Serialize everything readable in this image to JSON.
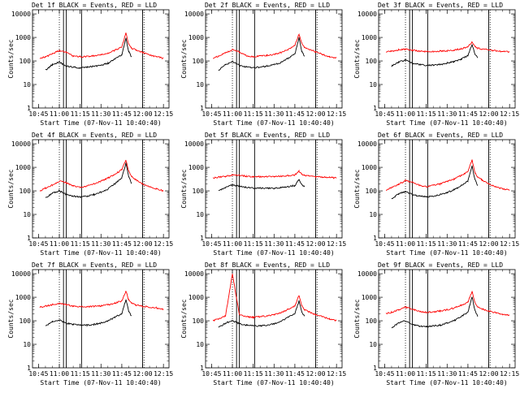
{
  "colors": {
    "events": "#000000",
    "lld": "#ff0000",
    "axes": "#000000",
    "background": "#ffffff"
  },
  "common": {
    "ylabel": "Counts/sec",
    "xlabel": "Start Time (07-Nov-11 10:40:40)",
    "xticks": [
      "10:45",
      "11:00",
      "11:15",
      "11:30",
      "11:45",
      "12:00",
      "12:15"
    ],
    "yticks": [
      "1",
      "10",
      "100",
      "1000",
      "10000"
    ]
  },
  "chart_data": [
    {
      "type": "line",
      "title": "Det 1f BLACK = Events, RED = LLD",
      "xlabel": "Start Time (07-Nov-11 10:40:40)",
      "ylabel": "Counts/sec",
      "xlim": [
        "10:40:40",
        "12:19:00"
      ],
      "ylim": [
        1,
        15000
      ],
      "yscale": "log",
      "x": [
        "10:46",
        "10:50",
        "10:55",
        "11:00",
        "11:05",
        "11:10",
        "11:15",
        "11:20",
        "11:25",
        "11:30",
        "11:35",
        "11:40",
        "11:45",
        "11:48",
        "11:50",
        "11:52",
        "11:55",
        "12:00",
        "12:05",
        "12:10",
        "12:15"
      ],
      "series": [
        {
          "name": "Events",
          "color": "#000000",
          "values": [
            null,
            40,
            70,
            90,
            60,
            55,
            50,
            55,
            60,
            65,
            80,
            120,
            180,
            900,
            250,
            150,
            null,
            null,
            null,
            null,
            null
          ]
        },
        {
          "name": "LLD",
          "color": "#ff0000",
          "values": [
            130,
            150,
            200,
            280,
            230,
            160,
            150,
            155,
            165,
            180,
            210,
            280,
            400,
            1500,
            500,
            350,
            300,
            230,
            180,
            150,
            130
          ]
        }
      ],
      "vlines_solid": [
        "11:03",
        "11:05",
        "11:16",
        "12:00"
      ],
      "vlines_dotted": [
        "11:00",
        "12:01"
      ]
    },
    {
      "type": "line",
      "title": "Det 2f BLACK = Events, RED = LLD",
      "xlabel": "Start Time (07-Nov-11 10:40:40)",
      "ylabel": "Counts/sec",
      "xlim": [
        "10:40:40",
        "12:19:00"
      ],
      "ylim": [
        1,
        15000
      ],
      "yscale": "log",
      "x": [
        "10:46",
        "10:50",
        "10:55",
        "11:00",
        "11:05",
        "11:10",
        "11:15",
        "11:20",
        "11:25",
        "11:30",
        "11:35",
        "11:40",
        "11:45",
        "11:48",
        "11:50",
        "11:52",
        "11:55",
        "12:00",
        "12:05",
        "12:10",
        "12:15"
      ],
      "series": [
        {
          "name": "Events",
          "color": "#000000",
          "values": [
            null,
            40,
            70,
            95,
            65,
            55,
            50,
            55,
            60,
            70,
            85,
            130,
            200,
            1000,
            250,
            150,
            null,
            null,
            null,
            null,
            null
          ]
        },
        {
          "name": "LLD",
          "color": "#ff0000",
          "values": [
            130,
            160,
            220,
            300,
            240,
            170,
            150,
            160,
            170,
            190,
            230,
            300,
            450,
            1400,
            550,
            380,
            320,
            240,
            190,
            150,
            130
          ]
        }
      ],
      "vlines_solid": [
        "11:03",
        "11:05",
        "11:16",
        "12:00"
      ],
      "vlines_dotted": [
        "11:00",
        "12:01"
      ]
    },
    {
      "type": "line",
      "title": "Det 3f BLACK = Events, RED = LLD",
      "xlabel": "Start Time (07-Nov-11 10:40:40)",
      "ylabel": "Counts/sec",
      "xlim": [
        "10:40:40",
        "12:19:00"
      ],
      "ylim": [
        1,
        15000
      ],
      "yscale": "log",
      "x": [
        "10:46",
        "10:50",
        "10:55",
        "11:00",
        "11:05",
        "11:10",
        "11:15",
        "11:20",
        "11:25",
        "11:30",
        "11:35",
        "11:40",
        "11:45",
        "11:48",
        "11:50",
        "11:52",
        "11:55",
        "12:00",
        "12:05",
        "12:10",
        "12:15"
      ],
      "series": [
        {
          "name": "Events",
          "color": "#000000",
          "values": [
            null,
            60,
            90,
            110,
            80,
            70,
            65,
            65,
            70,
            80,
            95,
            120,
            170,
            500,
            200,
            140,
            null,
            null,
            null,
            null,
            null
          ]
        },
        {
          "name": "LLD",
          "color": "#ff0000",
          "values": [
            240,
            260,
            290,
            320,
            290,
            260,
            250,
            250,
            260,
            270,
            290,
            330,
            400,
            650,
            420,
            350,
            320,
            290,
            270,
            250,
            240
          ]
        }
      ],
      "vlines_solid": [
        "11:03",
        "11:05",
        "11:16",
        "12:00"
      ],
      "vlines_dotted": [
        "11:00",
        "12:01"
      ]
    },
    {
      "type": "line",
      "title": "Det 4f BLACK = Events, RED = LLD",
      "xlabel": "Start Time (07-Nov-11 10:40:40)",
      "ylabel": "Counts/sec",
      "xlim": [
        "10:40:40",
        "12:19:00"
      ],
      "ylim": [
        1,
        15000
      ],
      "yscale": "log",
      "x": [
        "10:46",
        "10:50",
        "10:55",
        "11:00",
        "11:05",
        "11:10",
        "11:15",
        "11:20",
        "11:25",
        "11:30",
        "11:35",
        "11:40",
        "11:45",
        "11:48",
        "11:50",
        "11:52",
        "11:55",
        "12:00",
        "12:05",
        "12:10",
        "12:15"
      ],
      "series": [
        {
          "name": "Events",
          "color": "#000000",
          "values": [
            null,
            50,
            80,
            100,
            70,
            60,
            55,
            60,
            70,
            90,
            120,
            200,
            350,
            1500,
            400,
            200,
            null,
            null,
            null,
            null,
            null
          ]
        },
        {
          "name": "LLD",
          "color": "#ff0000",
          "values": [
            100,
            130,
            180,
            260,
            220,
            160,
            140,
            160,
            200,
            260,
            350,
            500,
            800,
            2000,
            700,
            400,
            300,
            200,
            150,
            120,
            100
          ]
        }
      ],
      "vlines_solid": [
        "11:03",
        "11:05",
        "11:16",
        "12:00"
      ],
      "vlines_dotted": [
        "11:00",
        "12:01"
      ]
    },
    {
      "type": "line",
      "title": "Det 5f BLACK = Events, RED = LLD",
      "xlabel": "Start Time (07-Nov-11 10:40:40)",
      "ylabel": "Counts/sec",
      "xlim": [
        "10:40:40",
        "12:19:00"
      ],
      "ylim": [
        1,
        15000
      ],
      "yscale": "log",
      "x": [
        "10:46",
        "10:50",
        "10:55",
        "11:00",
        "11:05",
        "11:10",
        "11:15",
        "11:20",
        "11:25",
        "11:30",
        "11:35",
        "11:40",
        "11:45",
        "11:48",
        "11:50",
        "11:52",
        "11:55",
        "12:00",
        "12:05",
        "12:10",
        "12:15"
      ],
      "series": [
        {
          "name": "Events",
          "color": "#000000",
          "values": [
            null,
            100,
            140,
            180,
            160,
            140,
            130,
            130,
            130,
            130,
            140,
            150,
            170,
            300,
            180,
            150,
            null,
            null,
            null,
            null,
            null
          ]
        },
        {
          "name": "LLD",
          "color": "#ff0000",
          "values": [
            350,
            380,
            420,
            480,
            460,
            420,
            400,
            400,
            400,
            410,
            420,
            440,
            470,
            700,
            500,
            450,
            420,
            400,
            390,
            370,
            350
          ]
        }
      ],
      "vlines_solid": [
        "11:03",
        "11:05",
        "11:16",
        "12:00"
      ],
      "vlines_dotted": [
        "11:00",
        "12:01"
      ]
    },
    {
      "type": "line",
      "title": "Det 6f BLACK = Events, RED = LLD",
      "xlabel": "Start Time (07-Nov-11 10:40:40)",
      "ylabel": "Counts/sec",
      "xlim": [
        "10:40:40",
        "12:19:00"
      ],
      "ylim": [
        1,
        15000
      ],
      "yscale": "log",
      "x": [
        "10:46",
        "10:50",
        "10:55",
        "11:00",
        "11:05",
        "11:10",
        "11:15",
        "11:20",
        "11:25",
        "11:30",
        "11:35",
        "11:40",
        "11:45",
        "11:48",
        "11:50",
        "11:52",
        "11:55",
        "12:00",
        "12:05",
        "12:10",
        "12:15"
      ],
      "series": [
        {
          "name": "Events",
          "color": "#000000",
          "values": [
            null,
            45,
            75,
            95,
            70,
            60,
            55,
            60,
            70,
            85,
            110,
            160,
            260,
            1200,
            300,
            170,
            null,
            null,
            null,
            null,
            null
          ]
        },
        {
          "name": "LLD",
          "color": "#ff0000",
          "values": [
            110,
            140,
            190,
            270,
            230,
            170,
            150,
            170,
            200,
            250,
            320,
            450,
            650,
            2100,
            600,
            380,
            290,
            200,
            150,
            120,
            110
          ]
        }
      ],
      "vlines_solid": [
        "11:03",
        "11:05",
        "11:16",
        "12:00"
      ],
      "vlines_dotted": [
        "11:00",
        "12:01"
      ]
    },
    {
      "type": "line",
      "title": "Det 7f BLACK = Events, RED = LLD",
      "xlabel": "Start Time (07-Nov-11 10:40:40)",
      "ylabel": "Counts/sec",
      "xlim": [
        "10:40:40",
        "12:19:00"
      ],
      "ylim": [
        1,
        15000
      ],
      "yscale": "log",
      "x": [
        "10:46",
        "10:50",
        "10:55",
        "11:00",
        "11:05",
        "11:10",
        "11:15",
        "11:20",
        "11:25",
        "11:30",
        "11:35",
        "11:40",
        "11:45",
        "11:48",
        "11:50",
        "11:52",
        "11:55",
        "12:00",
        "12:05",
        "12:10",
        "12:15"
      ],
      "series": [
        {
          "name": "Events",
          "color": "#000000",
          "values": [
            null,
            60,
            90,
            110,
            80,
            70,
            65,
            65,
            70,
            80,
            100,
            140,
            200,
            800,
            250,
            160,
            null,
            null,
            null,
            null,
            null
          ]
        },
        {
          "name": "LLD",
          "color": "#ff0000",
          "values": [
            380,
            420,
            480,
            550,
            480,
            420,
            400,
            400,
            410,
            430,
            480,
            560,
            700,
            1800,
            750,
            550,
            480,
            420,
            380,
            350,
            300
          ]
        }
      ],
      "vlines_solid": [
        "11:03",
        "11:05",
        "11:16",
        "12:00"
      ],
      "vlines_dotted": [
        "11:00",
        "12:01"
      ]
    },
    {
      "type": "line",
      "title": "Det 8f BLACK = Events, RED = LLD",
      "xlabel": "Start Time (07-Nov-11 10:40:40)",
      "ylabel": "Counts/sec",
      "xlim": [
        "10:40:40",
        "12:19:00"
      ],
      "ylim": [
        1,
        15000
      ],
      "yscale": "log",
      "x": [
        "10:46",
        "10:50",
        "10:55",
        "11:00",
        "11:05",
        "11:10",
        "11:15",
        "11:20",
        "11:25",
        "11:30",
        "11:35",
        "11:40",
        "11:45",
        "11:48",
        "11:50",
        "11:52",
        "11:55",
        "12:00",
        "12:05",
        "12:10",
        "12:15"
      ],
      "series": [
        {
          "name": "Events",
          "color": "#000000",
          "values": [
            null,
            50,
            80,
            100,
            75,
            65,
            60,
            60,
            65,
            75,
            95,
            140,
            200,
            700,
            230,
            150,
            null,
            null,
            null,
            null,
            null
          ]
        },
        {
          "name": "LLD",
          "color": "#ff0000",
          "values": [
            100,
            120,
            160,
            10000,
            180,
            150,
            140,
            150,
            160,
            180,
            220,
            300,
            420,
            1200,
            450,
            300,
            240,
            180,
            150,
            120,
            100
          ]
        }
      ],
      "vlines_solid": [
        "11:03",
        "11:05",
        "11:16",
        "12:00"
      ],
      "vlines_dotted": [
        "11:00",
        "12:01"
      ]
    },
    {
      "type": "line",
      "title": "Det 9f BLACK = Events, RED = LLD",
      "xlabel": "Start Time (07-Nov-11 10:40:40)",
      "ylabel": "Counts/sec",
      "xlim": [
        "10:40:40",
        "12:19:00"
      ],
      "ylim": [
        1,
        15000
      ],
      "yscale": "log",
      "x": [
        "10:46",
        "10:50",
        "10:55",
        "11:00",
        "11:05",
        "11:10",
        "11:15",
        "11:20",
        "11:25",
        "11:30",
        "11:35",
        "11:40",
        "11:45",
        "11:48",
        "11:50",
        "11:52",
        "11:55",
        "12:00",
        "12:05",
        "12:10",
        "12:15"
      ],
      "series": [
        {
          "name": "Events",
          "color": "#000000",
          "values": [
            null,
            50,
            80,
            100,
            70,
            60,
            55,
            60,
            65,
            80,
            100,
            150,
            230,
            1100,
            280,
            160,
            null,
            null,
            null,
            null,
            null
          ]
        },
        {
          "name": "LLD",
          "color": "#ff0000",
          "values": [
            200,
            230,
            290,
            380,
            310,
            250,
            230,
            240,
            260,
            290,
            350,
            450,
            620,
            1800,
            600,
            400,
            320,
            260,
            220,
            190,
            170
          ]
        }
      ],
      "vlines_solid": [
        "11:03",
        "11:05",
        "11:16",
        "12:00"
      ],
      "vlines_dotted": [
        "11:00",
        "12:01"
      ]
    }
  ]
}
